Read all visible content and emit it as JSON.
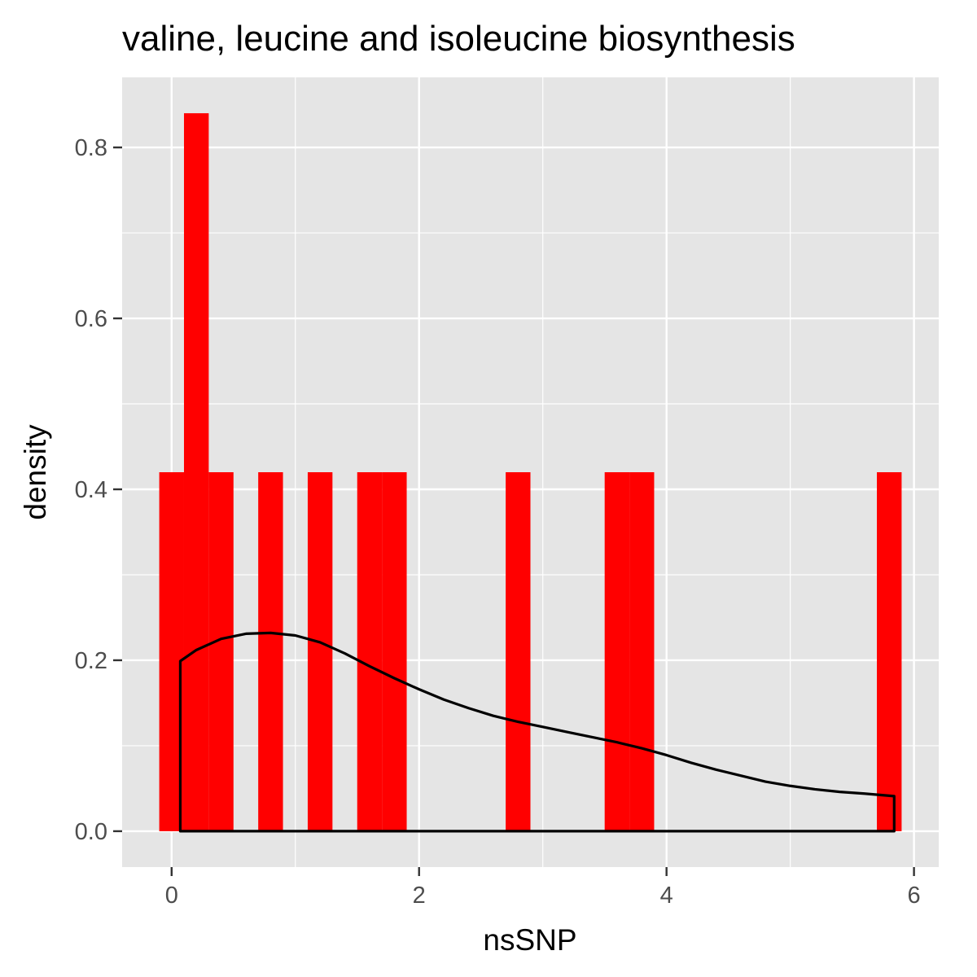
{
  "chart_data": {
    "type": "histogram",
    "title": "valine, leucine and isoleucine biosynthesis",
    "xlabel": "nsSNP",
    "ylabel": "density",
    "xlim": [
      -0.4,
      6.2
    ],
    "ylim": [
      -0.042,
      0.882
    ],
    "x_ticks": [
      0,
      2,
      4,
      6
    ],
    "y_ticks": [
      0.0,
      0.2,
      0.4,
      0.6,
      0.8
    ],
    "x_tick_labels": [
      "0",
      "2",
      "4",
      "6"
    ],
    "y_tick_labels": [
      "0.0",
      "0.2",
      "0.4",
      "0.6",
      "0.8"
    ],
    "grid": true,
    "legend": "none",
    "bars": [
      {
        "x0": -0.1,
        "x1": 0.1,
        "density": 0.42
      },
      {
        "x0": 0.1,
        "x1": 0.3,
        "density": 0.84
      },
      {
        "x0": 0.3,
        "x1": 0.5,
        "density": 0.42
      },
      {
        "x0": 0.7,
        "x1": 0.9,
        "density": 0.42
      },
      {
        "x0": 1.1,
        "x1": 1.3,
        "density": 0.42
      },
      {
        "x0": 1.5,
        "x1": 1.7,
        "density": 0.42
      },
      {
        "x0": 1.7,
        "x1": 1.9,
        "density": 0.42
      },
      {
        "x0": 2.7,
        "x1": 2.9,
        "density": 0.42
      },
      {
        "x0": 3.5,
        "x1": 3.7,
        "density": 0.42
      },
      {
        "x0": 3.7,
        "x1": 3.9,
        "density": 0.42
      },
      {
        "x0": 5.7,
        "x1": 5.9,
        "density": 0.42
      }
    ],
    "density_curve": {
      "x": [
        0.07,
        0.2,
        0.4,
        0.6,
        0.8,
        1.0,
        1.2,
        1.4,
        1.6,
        1.8,
        2.0,
        2.2,
        2.4,
        2.6,
        2.8,
        3.0,
        3.2,
        3.4,
        3.6,
        3.8,
        4.0,
        4.2,
        4.4,
        4.6,
        4.8,
        5.0,
        5.2,
        5.4,
        5.6,
        5.84
      ],
      "y": [
        0.199,
        0.212,
        0.225,
        0.231,
        0.232,
        0.229,
        0.221,
        0.208,
        0.193,
        0.179,
        0.166,
        0.154,
        0.144,
        0.135,
        0.128,
        0.122,
        0.116,
        0.11,
        0.104,
        0.097,
        0.089,
        0.08,
        0.072,
        0.065,
        0.058,
        0.053,
        0.049,
        0.046,
        0.044,
        0.041
      ],
      "color": "#000000"
    },
    "colors": {
      "bar_fill": "#ff0000",
      "panel_background": "#e5e5e5",
      "grid": "#ffffff",
      "curve": "#000000"
    }
  }
}
